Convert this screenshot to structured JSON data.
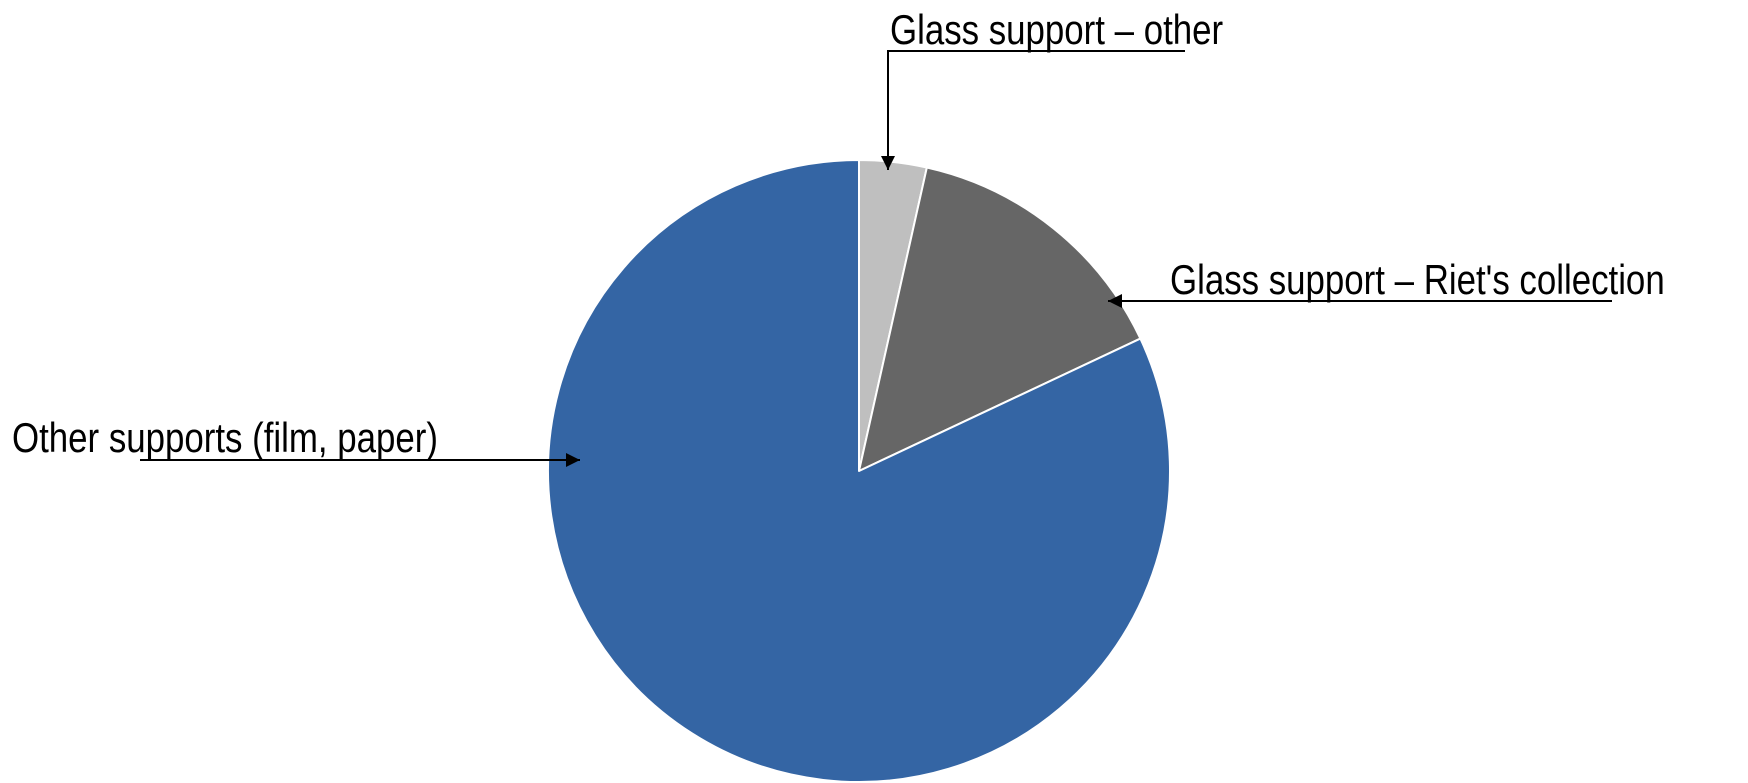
{
  "chart_data": {
    "type": "pie",
    "title": "",
    "legend": "none",
    "start_angle": "12 o'clock",
    "direction": "clockwise",
    "slices": [
      {
        "label": "Glass support – other",
        "value": 3.5,
        "color": "#bfbfbf"
      },
      {
        "label": "Glass support – Riet's collection",
        "value": 14.5,
        "color": "#666666"
      },
      {
        "label": "Other supports (film, paper)",
        "value": 82.0,
        "color": "#3465a4"
      }
    ],
    "slice_border_color": "#ffffff",
    "annotation_color": "#000000"
  }
}
